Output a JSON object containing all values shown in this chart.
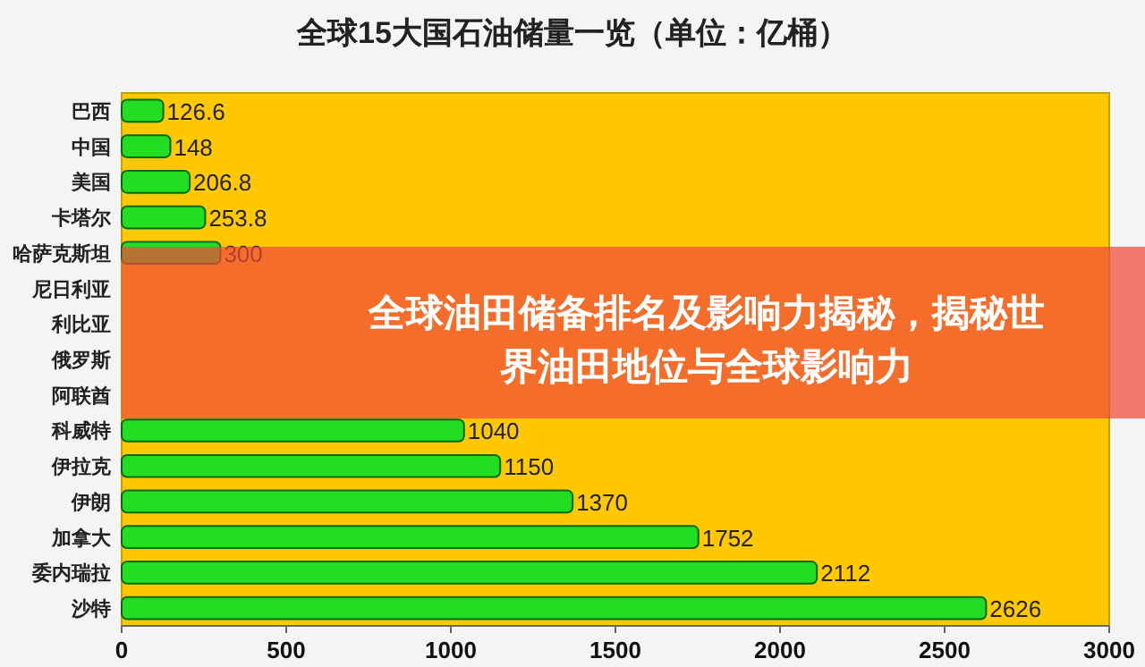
{
  "chart_data": {
    "type": "bar",
    "orientation": "horizontal",
    "title": "全球15大国石油储量一览（单位：亿桶）",
    "categories": [
      "巴西",
      "中国",
      "美国",
      "卡塔尔",
      "哈萨克斯坦",
      "尼日利亚",
      "利比亚",
      "俄罗斯",
      "阿联酋",
      "科威特",
      "伊拉克",
      "伊朗",
      "加拿大",
      "委内瑞拉",
      "沙特"
    ],
    "values": [
      126.6,
      148,
      206.8,
      253.8,
      300,
      null,
      null,
      null,
      null,
      1040,
      1150,
      1370,
      1752,
      2112,
      2626
    ],
    "color": "#22dd22",
    "xlim": [
      0,
      3000
    ],
    "xticks": [
      0,
      500,
      1000,
      1500,
      2000,
      2500,
      3000
    ],
    "data_labels": true,
    "grid": false,
    "annotations": [
      "全球油田储备排名及影响力揭秘，揭秘世界油田地位与全球影响力"
    ]
  }
}
